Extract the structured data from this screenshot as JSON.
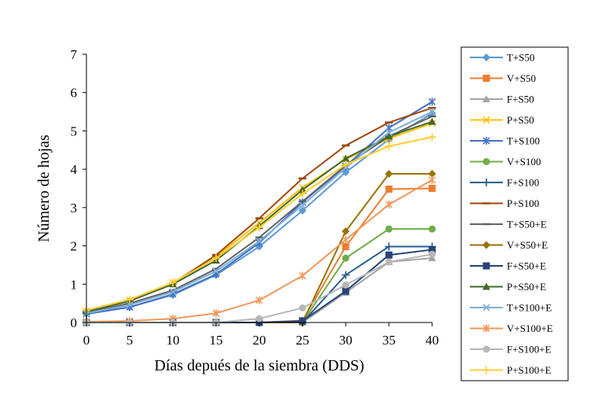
{
  "chart_data": {
    "type": "line",
    "title": "",
    "xlabel": "Días depués de la siembra (DDS)",
    "ylabel": "Número de hojas",
    "xlim": [
      0,
      40
    ],
    "ylim": [
      0,
      7
    ],
    "x": [
      0,
      5,
      10,
      15,
      20,
      25,
      30,
      35,
      40
    ],
    "x_tick_labels": [
      "0",
      "5",
      "10",
      "15",
      "20",
      "25",
      "30",
      "35",
      "40"
    ],
    "y_ticks": [
      0,
      1,
      2,
      3,
      4,
      5,
      6,
      7
    ],
    "y_tick_labels": [
      "0",
      "1",
      "2",
      "3",
      "4",
      "5",
      "6",
      "7"
    ],
    "grid": false,
    "legend_position": "right",
    "series": [
      {
        "name": "T+S50",
        "color": "#5B9BD5",
        "marker": "diamond",
        "values": [
          0.24,
          0.4,
          0.72,
          1.24,
          1.98,
          2.92,
          3.92,
          4.78,
          5.46
        ]
      },
      {
        "name": "V+S50",
        "color": "#ED7D31",
        "marker": "square",
        "values": [
          0,
          0,
          0,
          0,
          0,
          0.05,
          1.98,
          3.48,
          3.5
        ]
      },
      {
        "name": "F+S50",
        "color": "#A5A5A5",
        "marker": "triangle",
        "values": [
          0,
          0,
          0,
          0,
          0,
          0,
          0.78,
          1.58,
          1.68
        ]
      },
      {
        "name": "P+S50",
        "color": "#FFC000",
        "marker": "x",
        "values": [
          0.3,
          0.58,
          1.04,
          1.72,
          2.6,
          3.52,
          4.26,
          4.8,
          5.2
        ]
      },
      {
        "name": "T+S100",
        "color": "#4472C4",
        "marker": "star",
        "values": [
          0.22,
          0.4,
          0.74,
          1.26,
          2.08,
          3.14,
          4.08,
          5.08,
          5.76
        ]
      },
      {
        "name": "V+S100",
        "color": "#70AD47",
        "marker": "circle",
        "values": [
          0,
          0,
          0,
          0,
          0,
          0,
          1.68,
          2.44,
          2.44
        ]
      },
      {
        "name": "F+S100",
        "color": "#255E91",
        "marker": "plus",
        "values": [
          0,
          0,
          0,
          0,
          0,
          0,
          1.24,
          1.98,
          1.98
        ]
      },
      {
        "name": "P+S100",
        "color": "#9E480E",
        "marker": "dash",
        "values": [
          0.28,
          0.56,
          1.02,
          1.76,
          2.72,
          3.76,
          4.62,
          5.22,
          5.6
        ]
      },
      {
        "name": "T+S50+E",
        "color": "#636363",
        "marker": "dash",
        "values": [
          0.26,
          0.5,
          0.84,
          1.4,
          2.22,
          3.16,
          4.1,
          4.86,
          5.38
        ]
      },
      {
        "name": "V+S50+E",
        "color": "#997300",
        "marker": "diamond",
        "values": [
          0,
          0,
          0,
          0,
          0,
          0,
          2.38,
          3.88,
          3.88
        ]
      },
      {
        "name": "F+S50+E",
        "color": "#264478",
        "marker": "square",
        "values": [
          0,
          0,
          0,
          0,
          0,
          0.04,
          0.82,
          1.76,
          1.9
        ]
      },
      {
        "name": "P+S50+E",
        "color": "#43682B",
        "marker": "triangle",
        "values": [
          0.28,
          0.56,
          1.0,
          1.62,
          2.52,
          3.46,
          4.28,
          4.86,
          5.24
        ]
      },
      {
        "name": "T+S100+E",
        "color": "#7CAFDD",
        "marker": "x",
        "values": [
          0.24,
          0.46,
          0.8,
          1.34,
          2.12,
          3.06,
          4.04,
          4.96,
          5.5
        ]
      },
      {
        "name": "V+S100+E",
        "color": "#F1975A",
        "marker": "star",
        "values": [
          0.02,
          0.04,
          0.1,
          0.24,
          0.58,
          1.22,
          2.16,
          3.08,
          3.72
        ]
      },
      {
        "name": "F+S100+E",
        "color": "#B7B7B7",
        "marker": "circle",
        "values": [
          0,
          0,
          0,
          0,
          0.1,
          0.38,
          0.98,
          1.58,
          1.78
        ]
      },
      {
        "name": "P+S100+E",
        "color": "#FFCD33",
        "marker": "plus",
        "values": [
          0.32,
          0.6,
          1.04,
          1.68,
          2.48,
          3.36,
          4.12,
          4.6,
          4.84
        ]
      }
    ]
  }
}
